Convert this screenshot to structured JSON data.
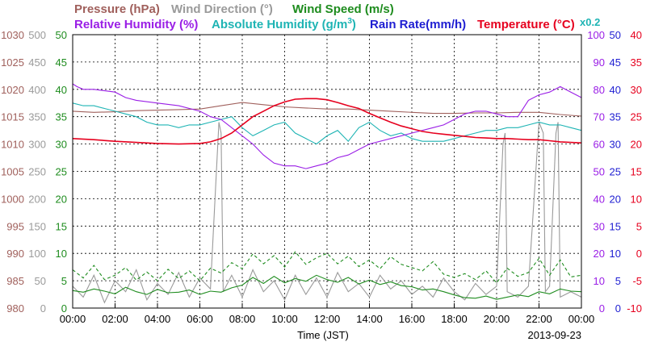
{
  "chart_data": {
    "type": "line",
    "date": "2013-09-23",
    "xlabel": "Time (JST)",
    "x_ticks": [
      "00:00",
      "02:00",
      "04:00",
      "06:00",
      "08:00",
      "10:00",
      "12:00",
      "14:00",
      "16:00",
      "18:00",
      "20:00",
      "22:00",
      "00:00"
    ],
    "grid": true,
    "legend": {
      "row1": [
        {
          "name": "Pressure (hPa)",
          "color": "#a0605c"
        },
        {
          "name": "Wind Direction (°)",
          "color": "#9a9a9a"
        },
        {
          "name": "Wind Speed (m/s)",
          "color": "#1e8c1e"
        }
      ],
      "row2": [
        {
          "name": "Relative Humidity (%)",
          "color": "#9a1ee6"
        },
        {
          "name": "Absolute Humidity (g/m",
          "sup": "3",
          "close": ")",
          "color": "#1eb4b4"
        },
        {
          "name": "Rain Rate(mm/h)",
          "color": "#1e1ed2"
        },
        {
          "name": "Temperature (°C)",
          "color": "#e6001e"
        }
      ],
      "scale_note": "x0.2"
    },
    "axes": {
      "pressure": {
        "label_color": "#a0605c",
        "ticks": [
          "1030",
          "1025",
          "1020",
          "1015",
          "1010",
          "1005",
          "1000",
          "995",
          "990",
          "985",
          "980"
        ],
        "ylim": [
          980,
          1030
        ]
      },
      "wind_direction": {
        "label_color": "#9a9a9a",
        "ticks": [
          "500",
          "450",
          "400",
          "350",
          "300",
          "250",
          "200",
          "150",
          "100",
          "50",
          "0"
        ],
        "ylim": [
          0,
          500
        ]
      },
      "wind_speed": {
        "label_color": "#1e8c1e",
        "ticks": [
          "50",
          "45",
          "40",
          "35",
          "30",
          "25",
          "20",
          "15",
          "10",
          "5",
          "0"
        ],
        "ylim": [
          0,
          50
        ]
      },
      "humidity": {
        "label_color": "#9a1ee6",
        "ticks": [
          "100",
          "90",
          "80",
          "70",
          "60",
          "50",
          "40",
          "30",
          "20",
          "10",
          "0"
        ],
        "ylim": [
          0,
          100
        ]
      },
      "rain": {
        "label_color": "#1e1ed2",
        "ticks": [
          "50",
          "45",
          "40",
          "35",
          "30",
          "25",
          "20",
          "15",
          "10",
          "5",
          "0"
        ],
        "ylim": [
          0,
          50
        ]
      },
      "temperature": {
        "label_color": "#e6001e",
        "ticks": [
          "40",
          "35",
          "30",
          "25",
          "20",
          "15",
          "10",
          "5",
          "0",
          "-5",
          "-10"
        ],
        "ylim": [
          -10,
          40
        ]
      }
    },
    "series": [
      {
        "name": "Pressure (hPa)",
        "axis": "pressure",
        "color": "#a0605c",
        "x": [
          0,
          1,
          2,
          3,
          4,
          5,
          6,
          7,
          8,
          9,
          10,
          11,
          12,
          13,
          14,
          15,
          16,
          17,
          18,
          19,
          20,
          21,
          22,
          23,
          24
        ],
        "y": [
          1016,
          1015.8,
          1015.9,
          1016.1,
          1016.2,
          1016.3,
          1016.4,
          1017,
          1017.6,
          1017.2,
          1016.8,
          1016.6,
          1016.4,
          1016.4,
          1016.2,
          1016.0,
          1015.8,
          1015.6,
          1015.6,
          1015.7,
          1015.7,
          1015.8,
          1015.8,
          1015.4,
          1015.1
        ]
      },
      {
        "name": "Relative Humidity (%)",
        "axis": "humidity",
        "color": "#9a1ee6",
        "x": [
          0,
          0.2,
          0.5,
          1,
          2,
          2.5,
          3,
          4,
          5,
          6,
          6.5,
          7,
          7.5,
          8,
          8.5,
          9,
          9.5,
          10,
          10.5,
          11,
          11.5,
          12,
          12.5,
          13,
          13.5,
          14,
          15,
          16,
          17,
          17.5,
          18,
          18.5,
          19,
          19.5,
          20,
          20.5,
          21,
          21.5,
          22,
          22.5,
          23,
          23.5,
          24
        ],
        "y": [
          82,
          81,
          80,
          80,
          79,
          77,
          76,
          75,
          74,
          72,
          70,
          69,
          66,
          63,
          60,
          56,
          53,
          52,
          52,
          51,
          52,
          53,
          55,
          56,
          58,
          60,
          62,
          64,
          66,
          67,
          69,
          71,
          72,
          72,
          71,
          70,
          70,
          76,
          78,
          79,
          81,
          79,
          77
        ]
      },
      {
        "name": "Absolute Humidity (g/m3)",
        "axis": "humidity",
        "color": "#1eb4b4",
        "x": [
          0,
          0.5,
          1,
          1.5,
          2,
          2.5,
          3,
          3.5,
          4,
          4.5,
          5,
          5.5,
          6,
          6.5,
          7,
          7.5,
          8,
          8.5,
          9,
          9.5,
          10,
          10.5,
          11,
          11.5,
          12,
          12.5,
          13,
          13.5,
          14,
          14.5,
          15,
          15.5,
          16,
          16.5,
          17,
          17.5,
          18,
          18.5,
          19,
          19.5,
          20,
          20.5,
          21,
          21.5,
          22,
          22.5,
          23,
          23.5,
          24
        ],
        "y": [
          75,
          74,
          74,
          73,
          72,
          71,
          70,
          68,
          67,
          67,
          66,
          67,
          67,
          68,
          69,
          70,
          66,
          63,
          65,
          67,
          68,
          64,
          62,
          60,
          63,
          65,
          61,
          66,
          68,
          65,
          63,
          64,
          62,
          61,
          61,
          61,
          62,
          63,
          64,
          65,
          65,
          66,
          66,
          67,
          68,
          67,
          67,
          66,
          65
        ]
      },
      {
        "name": "Temperature (°C)",
        "axis": "temperature",
        "color": "#e6001e",
        "x": [
          0,
          1,
          2,
          3,
          4,
          5,
          6,
          6.5,
          7,
          7.5,
          8,
          8.5,
          9,
          9.5,
          10,
          10.5,
          11,
          11.5,
          12,
          12.5,
          13,
          13.5,
          14,
          14.5,
          15,
          15.5,
          16,
          16.5,
          17,
          17.5,
          18,
          18.5,
          19,
          19.5,
          20,
          20.5,
          21,
          21.5,
          22,
          22.5,
          23,
          23.5,
          24
        ],
        "y": [
          21,
          20.8,
          20.5,
          20.3,
          20.1,
          20,
          20.1,
          20.4,
          21,
          22,
          23.5,
          25,
          26,
          27,
          27.7,
          28.2,
          28.3,
          28.3,
          28.1,
          27.6,
          27,
          26.5,
          25.6,
          24.8,
          24,
          23.3,
          22.8,
          22.3,
          22,
          21.8,
          21.6,
          21.4,
          21.2,
          21.1,
          21,
          21,
          20.9,
          20.8,
          20.8,
          20.6,
          20.4,
          20.3,
          20.2
        ]
      },
      {
        "name": "Wind Speed (m/s) mean",
        "axis": "wind_speed",
        "color": "#1e8c1e",
        "style": "solid",
        "x": [
          0,
          0.5,
          1,
          1.5,
          2,
          2.5,
          3,
          3.5,
          4,
          4.5,
          5,
          5.5,
          6,
          6.5,
          7,
          7.5,
          8,
          8.5,
          9,
          9.5,
          10,
          10.5,
          11,
          11.5,
          12,
          12.5,
          13,
          13.5,
          14,
          14.5,
          15,
          15.5,
          16,
          16.5,
          17,
          17.5,
          18,
          18.5,
          19,
          19.5,
          20,
          20.5,
          21,
          21.5,
          22,
          22.5,
          23,
          23.5,
          24
        ],
        "y": [
          3.2,
          2.9,
          3.5,
          3.1,
          2.6,
          3.8,
          3.0,
          2.5,
          3.4,
          2.8,
          2.9,
          3.3,
          2.5,
          3.1,
          2.9,
          3.7,
          4.2,
          5.6,
          4.5,
          5.8,
          4.6,
          5.4,
          4.9,
          6.0,
          5.2,
          4.7,
          5.6,
          4.4,
          5.1,
          4.3,
          4.8,
          4.1,
          3.9,
          3.3,
          3.5,
          3.0,
          2.4,
          1.9,
          1.8,
          2.2,
          1.6,
          2.0,
          2.4,
          2.1,
          3.0,
          2.6,
          3.5,
          3.1,
          3.0
        ]
      },
      {
        "name": "Wind Speed (m/s) gust",
        "axis": "wind_speed",
        "color": "#1e8c1e",
        "style": "dashed",
        "x": [
          0,
          0.5,
          1,
          1.5,
          2,
          2.5,
          3,
          3.5,
          4,
          4.5,
          5,
          5.5,
          6,
          6.5,
          7,
          7.5,
          8,
          8.5,
          9,
          9.5,
          10,
          10.5,
          11,
          11.5,
          12,
          12.5,
          13,
          13.5,
          14,
          14.5,
          15,
          15.5,
          16,
          16.5,
          17,
          17.5,
          18,
          18.5,
          19,
          19.5,
          20,
          20.5,
          21,
          21.5,
          22,
          22.5,
          23,
          23.5,
          24
        ],
        "y": [
          7.0,
          5.5,
          7.8,
          5.2,
          6.0,
          7.4,
          5.1,
          6.6,
          5.0,
          7.1,
          5.4,
          6.8,
          5.0,
          7.3,
          6.4,
          8.3,
          7.2,
          9.9,
          8.1,
          9.6,
          7.5,
          10.3,
          8.0,
          9.2,
          10.0,
          8.1,
          9.5,
          7.6,
          8.8,
          7.2,
          9.4,
          8.0,
          7.4,
          6.8,
          8.5,
          6.2,
          5.6,
          6.3,
          5.2,
          6.8,
          4.6,
          7.3,
          5.8,
          6.5,
          9.1,
          6.0,
          8.8,
          5.7,
          6.0
        ]
      },
      {
        "name": "Wind Direction (°)",
        "axis": "wind_direction",
        "color": "#9a9a9a",
        "x": [
          0,
          0.5,
          1,
          1.5,
          2,
          2.5,
          3,
          3.5,
          4,
          4.5,
          5,
          5.5,
          6,
          6.5,
          6.9,
          7.0,
          7.1,
          7.5,
          8,
          8.5,
          9,
          9.5,
          10,
          10.5,
          11,
          11.5,
          12,
          12.5,
          13,
          13.5,
          14,
          14.5,
          15,
          15.5,
          16,
          16.5,
          17,
          17.5,
          18,
          18.5,
          19,
          19.5,
          20,
          20.3,
          20.4,
          20.5,
          21,
          21.5,
          22,
          22.2,
          22.3,
          22.5,
          22.8,
          22.9,
          23,
          23.5,
          24
        ],
        "y": [
          40,
          20,
          60,
          10,
          50,
          30,
          70,
          15,
          45,
          25,
          65,
          20,
          55,
          35,
          340,
          320,
          30,
          60,
          20,
          70,
          30,
          50,
          15,
          60,
          25,
          55,
          20,
          65,
          30,
          45,
          20,
          60,
          35,
          50,
          25,
          40,
          20,
          55,
          30,
          15,
          45,
          25,
          40,
          300,
          320,
          30,
          20,
          40,
          340,
          320,
          30,
          40,
          320,
          340,
          20,
          30,
          20
        ]
      },
      {
        "name": "Rain Rate(mm/h)",
        "axis": "rain",
        "color": "#1e1ed2",
        "x": [
          0,
          24
        ],
        "y": [
          0,
          0
        ]
      }
    ]
  }
}
